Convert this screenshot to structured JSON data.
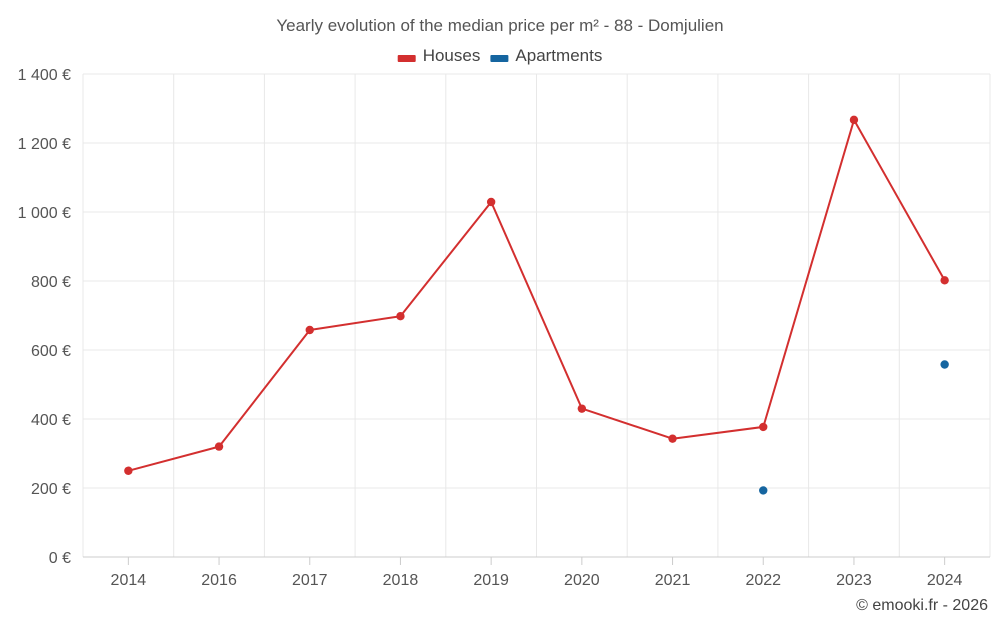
{
  "chart_data": {
    "type": "line",
    "title": "Yearly evolution of the median price per m² - 88 - Domjulien",
    "categories": [
      "2014",
      "2016",
      "2017",
      "2018",
      "2019",
      "2020",
      "2021",
      "2022",
      "2023",
      "2024"
    ],
    "series": [
      {
        "name": "Houses",
        "color": "#d32f2f",
        "values": [
          250,
          320,
          658,
          698,
          1029,
          430,
          343,
          377,
          1267,
          802
        ]
      },
      {
        "name": "Apartments",
        "color": "#1565a0",
        "values": [
          null,
          null,
          null,
          null,
          null,
          null,
          null,
          193,
          null,
          558
        ]
      }
    ],
    "y_ticks": [
      0,
      200,
      400,
      600,
      800,
      1000,
      1200,
      1400
    ],
    "y_tick_labels": [
      "0 €",
      "200 €",
      "400 €",
      "600 €",
      "800 €",
      "1 000 €",
      "1 200 €",
      "1 400 €"
    ],
    "ylim": [
      0,
      1400
    ],
    "xlabel": "",
    "ylabel": "",
    "grid": true,
    "legend_position": "top-center"
  },
  "credit": "© emooki.fr - 2026"
}
